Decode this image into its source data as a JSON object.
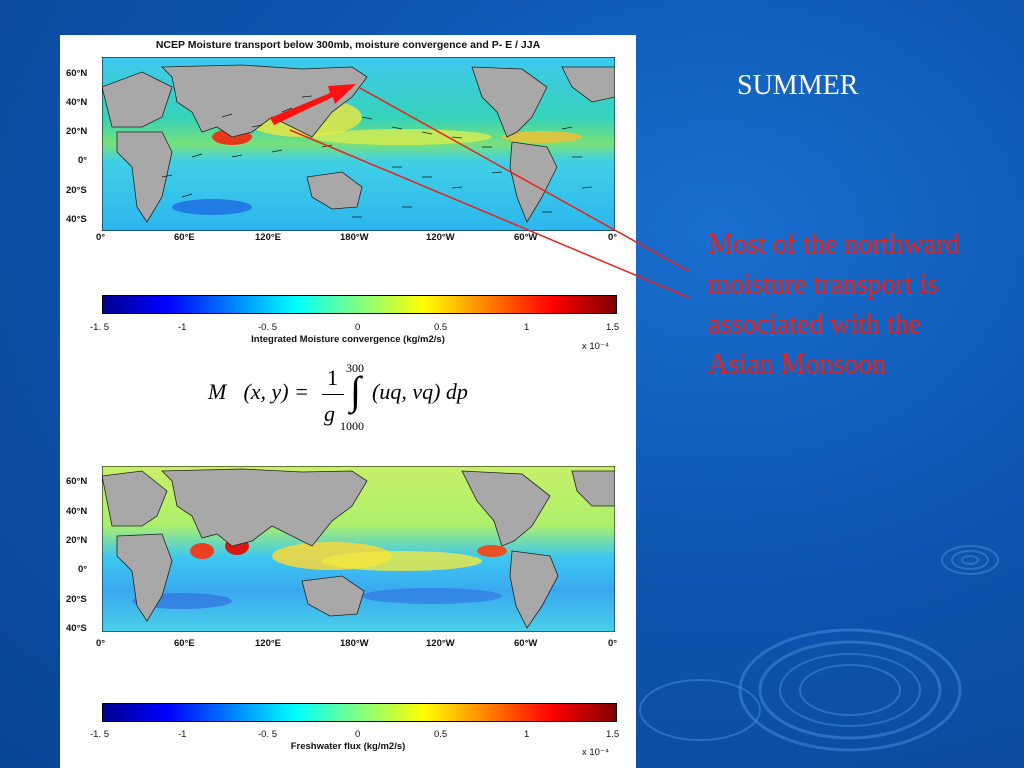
{
  "slide": {
    "title": "SUMMER",
    "annotation": [
      "Most of the northward",
      "moisture transport is",
      "associated with the",
      " Asian Monsoon"
    ],
    "colors": {
      "background": "#0d55b0",
      "annotation": "#e8221a",
      "arrow": "#ff1010"
    }
  },
  "top_map": {
    "title": "NCEP Moisture transport below 300mb, moisture convergence and  P- E / JJA",
    "lat_labels": [
      "60°N",
      "40°N",
      "20°N",
      "0°",
      "20°S",
      "40°S"
    ],
    "lon_labels": [
      "0°",
      "60°E",
      "120°E",
      "180°W",
      "120°W",
      "60°W",
      "0°"
    ]
  },
  "top_colorbar": {
    "ticks": [
      "-1. 5",
      "-1",
      "-0. 5",
      "0",
      "0.5",
      "1",
      "1.5"
    ],
    "label": "Integrated Moisture convergence (kg/m2/s)",
    "scale": "x 10⁻⁴"
  },
  "equation": {
    "lhs": "M⃗(x, y) =",
    "numerator": "1",
    "denominator": "g",
    "upper": "300",
    "integral": "∫",
    "lower": "1000",
    "integrand": "(uq, vq) dp"
  },
  "bottom_map": {
    "lat_labels": [
      "60°N",
      "40°N",
      "20°N",
      "0°",
      "20°S",
      "40°S"
    ],
    "lon_labels": [
      "0°",
      "60°E",
      "120°E",
      "180°W",
      "120°W",
      "60°W",
      "0°"
    ]
  },
  "bottom_colorbar": {
    "ticks": [
      "-1. 5",
      "-1",
      "-0. 5",
      "0",
      "0.5",
      "1",
      "1.5"
    ],
    "label": "Freshwater flux (kg/m2/s)",
    "scale": "x 10⁻⁴"
  }
}
